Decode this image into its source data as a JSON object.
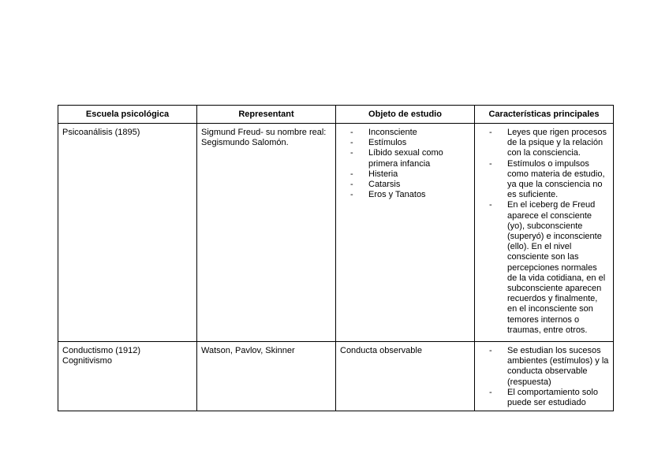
{
  "table": {
    "headers": [
      "Escuela psicológica",
      "Representant",
      "Objeto de estudio",
      "Características principales"
    ],
    "rows": [
      {
        "escuela": [
          "Psicoanálisis (1895)"
        ],
        "representante": "Sigmund Freud- su nombre real: Segismundo Salomón.",
        "objeto": [
          "Inconsciente",
          "Estímulos",
          "Líbido sexual como primera infancia",
          "Histeria",
          "Catarsis",
          "Eros y Tanatos"
        ],
        "caracteristicas": [
          "Leyes que rigen procesos de la psique y la relación con la consciencia.",
          "Estímulos o impulsos como materia de estudio, ya que la consciencia no es suficiente.",
          "En el iceberg de Freud aparece el consciente (yo), subconsciente (superyó) e inconsciente (ello). En el nivel consciente son las percepciones normales de la vida cotidiana, en el subconsciente aparecen recuerdos y finalmente, en el inconsciente son temores internos o traumas, entre otros."
        ]
      },
      {
        "escuela": [
          "Conductismo (1912)",
          "Cognitivismo"
        ],
        "representante": "Watson, Pavlov, Skinner",
        "objeto_text": "Conducta observable",
        "caracteristicas": [
          "Se estudian los sucesos ambientes (estímulos) y la conducta observable (respuesta)",
          "El comportamiento solo puede ser estudiado"
        ]
      }
    ]
  }
}
